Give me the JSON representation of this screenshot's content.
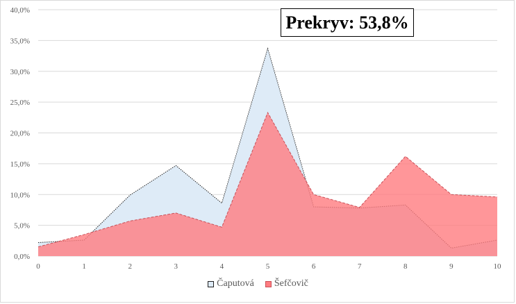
{
  "chart_data": {
    "type": "area",
    "x": [
      0,
      1,
      2,
      3,
      4,
      5,
      6,
      7,
      8,
      9,
      10
    ],
    "series": [
      {
        "name": "Čaputová",
        "values": [
          2.2,
          2.6,
          9.9,
          14.7,
          8.6,
          33.7,
          8.0,
          7.8,
          8.3,
          1.3,
          2.6
        ],
        "fill": "#deebf7",
        "stroke": "#1f1f1f"
      },
      {
        "name": "Šefčovič",
        "values": [
          1.5,
          3.5,
          5.7,
          7.0,
          4.7,
          23.3,
          10.0,
          7.9,
          16.2,
          10.0,
          9.6
        ],
        "fill": "#ff7c80",
        "stroke": "#c94f57"
      }
    ],
    "ylim": [
      0,
      40
    ],
    "y_ticks": [
      "0,0%",
      "5,0%",
      "10,0%",
      "15,0%",
      "20,0%",
      "25,0%",
      "30,0%",
      "35,0%",
      "40,0%"
    ],
    "x_ticks": [
      "0",
      "1",
      "2",
      "3",
      "4",
      "5",
      "6",
      "7",
      "8",
      "9",
      "10"
    ],
    "annotation": "Prekryv: 53,8%",
    "grid": true,
    "legend_position": "bottom"
  },
  "colors": {
    "gridline": "#d9d9d9",
    "axis_text": "#595959"
  }
}
